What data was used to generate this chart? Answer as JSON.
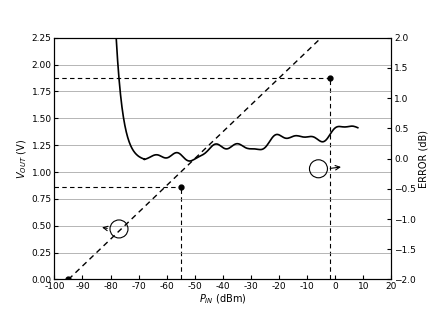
{
  "xlabel": "P_{IN} (dBm)",
  "ylabel_left": "V_{OUT} (V)",
  "ylabel_right": "ERROR (dB)",
  "xlim": [
    -100,
    20
  ],
  "ylim_left": [
    0,
    2.25
  ],
  "ylim_right": [
    -2.0,
    2.0
  ],
  "xticks": [
    -100,
    -90,
    -80,
    -70,
    -60,
    -50,
    -40,
    -30,
    -20,
    -10,
    0,
    10,
    20
  ],
  "yticks_left": [
    0,
    0.25,
    0.5,
    0.75,
    1.0,
    1.25,
    1.5,
    1.75,
    2.0,
    2.25
  ],
  "yticks_right": [
    -2.0,
    -1.5,
    -1.0,
    -0.5,
    0.0,
    0.5,
    1.0,
    1.5,
    2.0
  ],
  "vout_A": 0.865,
  "vout_B": 1.875,
  "pin_A": -55,
  "pin_B": -2,
  "intercept_x": -95,
  "intercept_y": 0.0,
  "slope": 0.025,
  "bg_color": "#ffffff",
  "line_color": "#000000"
}
